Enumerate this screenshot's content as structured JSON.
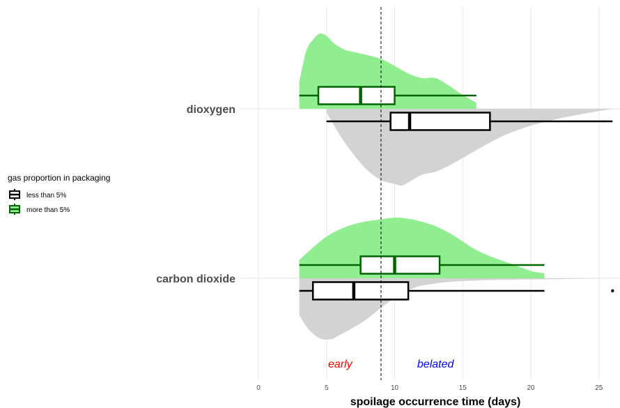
{
  "chart_data": {
    "type": "raincloud",
    "xlabel": "spoilage occurrence time (days)",
    "xlim": [
      -1,
      26.5
    ],
    "x_ticks": [
      0,
      5,
      10,
      15,
      20,
      25
    ],
    "grid": true,
    "reference_line": 9,
    "annotations": [
      {
        "text": "early",
        "x": 6,
        "color": "#ff0000"
      },
      {
        "text": "belated",
        "x": 13,
        "color": "#0000ff"
      }
    ],
    "legend": {
      "title": "gas proportion in packaging",
      "placement": "left",
      "entries": [
        {
          "label": "less than 5%",
          "color": "#000000"
        },
        {
          "label": "more than 5%",
          "color": "#006400"
        }
      ]
    },
    "categories": [
      "dioxygen",
      "carbon dioxide"
    ],
    "groups": [
      {
        "category": "dioxygen",
        "series": [
          {
            "series": "more than 5%",
            "fill": "#90ee90",
            "box_color": "#006400",
            "whisker_low": 3,
            "q1": 4.4,
            "median": 7.5,
            "q3": 10,
            "whisker_high": 16,
            "outliers": [],
            "density": [
              [
                3,
                0.35
              ],
              [
                3.5,
                0.75
              ],
              [
                4,
                0.9
              ],
              [
                4.5,
                0.98
              ],
              [
                5,
                0.95
              ],
              [
                5.5,
                0.86
              ],
              [
                6,
                0.8
              ],
              [
                6.5,
                0.76
              ],
              [
                7,
                0.74
              ],
              [
                7.5,
                0.72
              ],
              [
                8,
                0.7
              ],
              [
                9,
                0.65
              ],
              [
                10,
                0.56
              ],
              [
                11,
                0.46
              ],
              [
                12,
                0.4
              ],
              [
                13,
                0.4
              ],
              [
                14,
                0.3
              ],
              [
                15,
                0.18
              ],
              [
                16,
                0.08
              ]
            ]
          },
          {
            "series": "less than 5%",
            "fill": "#d3d3d3",
            "box_color": "#000000",
            "whisker_low": 5,
            "q1": 9.7,
            "median": 11.1,
            "q3": 17,
            "whisker_high": 26,
            "outliers": [],
            "density": [
              [
                5,
                0.05
              ],
              [
                6,
                0.35
              ],
              [
                7,
                0.6
              ],
              [
                8,
                0.8
              ],
              [
                9,
                0.93
              ],
              [
                10,
                0.98
              ],
              [
                10.5,
                1.0
              ],
              [
                11,
                0.96
              ],
              [
                12,
                0.86
              ],
              [
                13,
                0.82
              ],
              [
                14,
                0.74
              ],
              [
                15,
                0.64
              ],
              [
                16,
                0.54
              ],
              [
                17,
                0.44
              ],
              [
                18,
                0.35
              ],
              [
                19,
                0.28
              ],
              [
                20,
                0.22
              ],
              [
                22,
                0.13
              ],
              [
                24,
                0.06
              ],
              [
                26,
                0.0
              ]
            ]
          }
        ]
      },
      {
        "category": "carbon dioxide",
        "series": [
          {
            "series": "more than 5%",
            "fill": "#90ee90",
            "box_color": "#006400",
            "whisker_low": 3,
            "q1": 7.5,
            "median": 10,
            "q3": 13.3,
            "whisker_high": 21,
            "outliers": [],
            "density": [
              [
                3,
                0.3
              ],
              [
                4,
                0.5
              ],
              [
                5,
                0.68
              ],
              [
                6,
                0.8
              ],
              [
                7,
                0.88
              ],
              [
                8,
                0.93
              ],
              [
                9,
                0.96
              ],
              [
                10,
                0.99
              ],
              [
                11,
                0.97
              ],
              [
                12,
                0.92
              ],
              [
                13,
                0.85
              ],
              [
                14,
                0.74
              ],
              [
                15,
                0.6
              ],
              [
                16,
                0.46
              ],
              [
                17,
                0.36
              ],
              [
                18,
                0.28
              ],
              [
                19,
                0.2
              ],
              [
                20,
                0.12
              ],
              [
                21,
                0.08
              ]
            ]
          },
          {
            "series": "less than 5%",
            "fill": "#d3d3d3",
            "box_color": "#000000",
            "whisker_low": 3,
            "q1": 4,
            "median": 7,
            "q3": 11,
            "whisker_high": 21,
            "outliers": [
              26
            ],
            "density": [
              [
                3,
                0.6
              ],
              [
                3.5,
                0.78
              ],
              [
                4,
                0.9
              ],
              [
                4.5,
                0.98
              ],
              [
                5,
                1.0
              ],
              [
                5.5,
                0.98
              ],
              [
                6,
                0.92
              ],
              [
                7,
                0.8
              ],
              [
                8,
                0.66
              ],
              [
                9,
                0.48
              ],
              [
                10,
                0.32
              ],
              [
                11,
                0.2
              ],
              [
                12,
                0.12
              ],
              [
                14,
                0.06
              ],
              [
                17,
                0.03
              ],
              [
                20,
                0.02
              ],
              [
                23,
                0.01
              ],
              [
                26,
                0.0
              ]
            ]
          }
        ]
      }
    ]
  }
}
